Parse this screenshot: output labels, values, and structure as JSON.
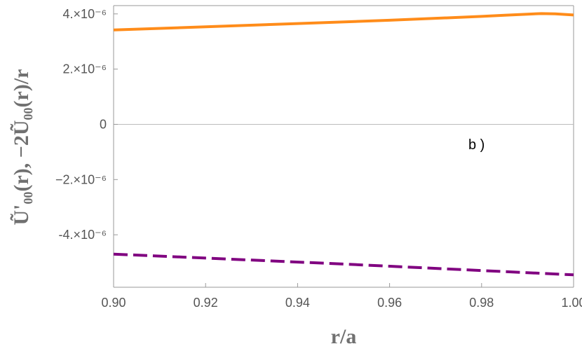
{
  "chart_data": {
    "type": "line",
    "title": "",
    "xlabel": "r/a",
    "ylabel": "Ũ'₀₀(r), −2Ũ₀₀(r)/r",
    "xlim": [
      0.9,
      1.0
    ],
    "ylim": [
      -5.9e-06,
      4.3e-06
    ],
    "x_ticks": [
      0.9,
      0.92,
      0.94,
      0.96,
      0.98,
      1.0
    ],
    "x_tick_labels": [
      "0.90",
      "0.92",
      "0.94",
      "0.96",
      "0.98",
      "1.00"
    ],
    "y_ticks": [
      4e-06,
      2e-06,
      0,
      -2e-06,
      -4e-06
    ],
    "y_tick_labels": [
      "4.×10⁻⁶",
      "2.×10⁻⁶",
      "0",
      "−2.×10⁻⁶",
      "-4.×10⁻⁶"
    ],
    "annotation": "b )",
    "series": [
      {
        "color": "#ff8c1a",
        "style": "solid",
        "x": [
          0.9,
          0.92,
          0.94,
          0.96,
          0.98,
          0.985,
          0.99,
          0.993,
          0.996,
          1.0
        ],
        "y": [
          3.42e-06,
          3.53e-06,
          3.65e-06,
          3.77e-06,
          3.91e-06,
          3.95e-06,
          3.99e-06,
          4.01e-06,
          4e-06,
          3.96e-06
        ]
      },
      {
        "color": "#800080",
        "style": "dashed",
        "x": [
          0.9,
          0.95,
          1.0
        ],
        "y": [
          -4.7e-06,
          -5.06e-06,
          -5.45e-06
        ]
      }
    ]
  }
}
